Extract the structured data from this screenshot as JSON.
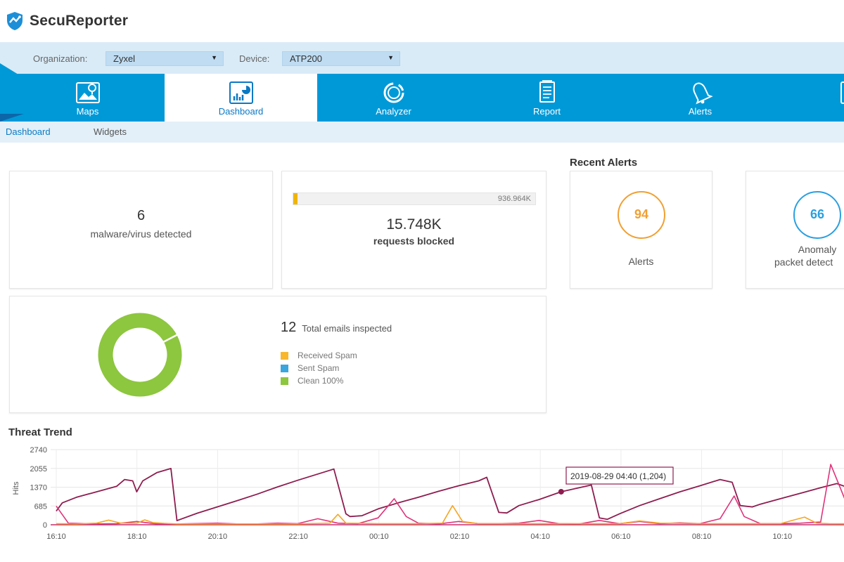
{
  "app": {
    "title": "SecuReporter"
  },
  "filters": {
    "organization_label": "Organization:",
    "organization_value": "Zyxel",
    "device_label": "Device:",
    "device_value": "ATP200"
  },
  "nav": {
    "items": [
      {
        "label": "Maps",
        "icon": "map-icon"
      },
      {
        "label": "Dashboard",
        "icon": "dashboard-icon"
      },
      {
        "label": "Analyzer",
        "icon": "analyzer-icon"
      },
      {
        "label": "Report",
        "icon": "report-icon"
      },
      {
        "label": "Alerts",
        "icon": "bell-icon"
      }
    ],
    "active": "Dashboard"
  },
  "subnav": {
    "items": [
      "Dashboard",
      "Widgets"
    ],
    "active": "Dashboard"
  },
  "malware": {
    "count": "6",
    "label": "malware/virus detected"
  },
  "requests": {
    "value": "15.748K",
    "label": "requests blocked",
    "max_label": "936.964K",
    "fill_fraction": 0.0168,
    "fill_color": "#f0b500"
  },
  "recent_alerts": {
    "title": "Recent Alerts",
    "items": [
      {
        "value": "94",
        "label": "Alerts",
        "color": "#f0a033"
      },
      {
        "value": "66",
        "label_line1": "Anomaly",
        "label_line2": "packet detect",
        "color": "#2a9fe0"
      }
    ]
  },
  "email": {
    "count": "12",
    "label": "Total emails inspected",
    "legend": [
      {
        "label": "Received Spam",
        "color": "#f8b72c"
      },
      {
        "label": "Sent Spam",
        "color": "#3aa6dd"
      },
      {
        "label": "Clean 100%",
        "color": "#8dc63f"
      }
    ],
    "clean_percent": 100
  },
  "threat_trend": {
    "title": "Threat Trend",
    "tooltip": "2019-08-29 04:40 (1,204)",
    "chart_data": {
      "type": "line",
      "title": "Threat Trend",
      "ylabel": "Hits",
      "ylim": [
        0,
        2740
      ],
      "y_ticks": [
        "2740",
        "2055",
        "1370",
        "685",
        "0"
      ],
      "x_ticks": [
        "16:10",
        "18:10",
        "20:10",
        "22:10",
        "00:10",
        "02:10",
        "04:10",
        "06:10",
        "08:10",
        "10:10"
      ],
      "x_range_hours": [
        16.0,
        27.75
      ],
      "series": [
        {
          "color": "#8e1d4f",
          "points": [
            [
              16.0,
              500
            ],
            [
              16.15,
              800
            ],
            [
              16.5,
              1000
            ],
            [
              17.0,
              1200
            ],
            [
              17.5,
              1400
            ],
            [
              17.7,
              1650
            ],
            [
              17.9,
              1600
            ],
            [
              18.0,
              1200
            ],
            [
              18.15,
              1600
            ],
            [
              18.5,
              1900
            ],
            [
              18.85,
              2050
            ],
            [
              19.0,
              150
            ],
            [
              19.5,
              420
            ],
            [
              20.0,
              650
            ],
            [
              20.5,
              880
            ],
            [
              21.0,
              1120
            ],
            [
              21.5,
              1380
            ],
            [
              22.0,
              1620
            ],
            [
              22.5,
              1850
            ],
            [
              22.9,
              2030
            ],
            [
              23.2,
              400
            ],
            [
              23.3,
              300
            ],
            [
              23.6,
              330
            ],
            [
              24.0,
              580
            ],
            [
              24.5,
              800
            ],
            [
              25.0,
              1000
            ],
            [
              25.5,
              1220
            ],
            [
              26.0,
              1420
            ],
            [
              26.5,
              1600
            ],
            [
              26.7,
              1730
            ],
            [
              27.0,
              450
            ],
            [
              27.2,
              430
            ],
            [
              27.5,
              700
            ],
            [
              28.0,
              920
            ],
            [
              28.55,
              1204
            ],
            [
              29.0,
              1350
            ],
            [
              29.3,
              1450
            ],
            [
              29.5,
              250
            ],
            [
              29.7,
              200
            ],
            [
              30.0,
              400
            ],
            [
              30.5,
              700
            ],
            [
              31.0,
              950
            ],
            [
              31.5,
              1200
            ],
            [
              32.0,
              1420
            ],
            [
              32.5,
              1650
            ],
            [
              32.8,
              1550
            ],
            [
              33.0,
              700
            ],
            [
              33.3,
              650
            ],
            [
              33.5,
              750
            ],
            [
              34.0,
              950
            ],
            [
              34.5,
              1150
            ],
            [
              35.0,
              1350
            ],
            [
              35.4,
              1500
            ],
            [
              35.6,
              1400
            ],
            [
              35.8,
              200
            ],
            [
              36.0,
              100
            ]
          ]
        },
        {
          "color": "#e0327a",
          "points": [
            [
              16.0,
              680
            ],
            [
              16.3,
              60
            ],
            [
              17.0,
              30
            ],
            [
              17.5,
              40
            ],
            [
              18.0,
              120
            ],
            [
              18.5,
              30
            ],
            [
              19.0,
              30
            ],
            [
              20.0,
              60
            ],
            [
              20.5,
              30
            ],
            [
              21.0,
              30
            ],
            [
              21.5,
              60
            ],
            [
              22.0,
              40
            ],
            [
              22.5,
              220
            ],
            [
              23.0,
              60
            ],
            [
              23.5,
              40
            ],
            [
              24.0,
              250
            ],
            [
              24.4,
              950
            ],
            [
              24.7,
              300
            ],
            [
              25.0,
              60
            ],
            [
              25.5,
              30
            ],
            [
              26.0,
              120
            ],
            [
              26.5,
              40
            ],
            [
              27.0,
              40
            ],
            [
              27.5,
              60
            ],
            [
              28.0,
              160
            ],
            [
              28.5,
              40
            ],
            [
              29.0,
              30
            ],
            [
              29.5,
              160
            ],
            [
              30.0,
              40
            ],
            [
              30.5,
              120
            ],
            [
              31.0,
              40
            ],
            [
              31.5,
              70
            ],
            [
              32.0,
              40
            ],
            [
              32.5,
              220
            ],
            [
              32.85,
              1050
            ],
            [
              33.1,
              300
            ],
            [
              33.5,
              40
            ],
            [
              34.0,
              40
            ],
            [
              34.5,
              60
            ],
            [
              35.0,
              100
            ],
            [
              35.25,
              2200
            ],
            [
              35.5,
              1300
            ],
            [
              35.8,
              200
            ],
            [
              36.0,
              60
            ]
          ]
        },
        {
          "color": "#f5a623",
          "points": [
            [
              16.0,
              40
            ],
            [
              16.5,
              30
            ],
            [
              17.0,
              60
            ],
            [
              17.3,
              170
            ],
            [
              17.6,
              60
            ],
            [
              18.0,
              60
            ],
            [
              18.2,
              180
            ],
            [
              18.4,
              80
            ],
            [
              18.7,
              50
            ],
            [
              19.0,
              30
            ],
            [
              20.0,
              30
            ],
            [
              21.0,
              30
            ],
            [
              22.0,
              30
            ],
            [
              22.8,
              60
            ],
            [
              23.0,
              380
            ],
            [
              23.2,
              60
            ],
            [
              24.0,
              40
            ],
            [
              25.0,
              40
            ],
            [
              25.6,
              60
            ],
            [
              25.85,
              700
            ],
            [
              26.1,
              120
            ],
            [
              26.5,
              40
            ],
            [
              27.0,
              40
            ],
            [
              28.0,
              40
            ],
            [
              29.0,
              40
            ],
            [
              30.0,
              40
            ],
            [
              30.5,
              140
            ],
            [
              31.0,
              60
            ],
            [
              32.0,
              40
            ],
            [
              33.0,
              40
            ],
            [
              34.0,
              40
            ],
            [
              34.6,
              280
            ],
            [
              34.9,
              60
            ],
            [
              35.2,
              40
            ],
            [
              36.0,
              30
            ]
          ]
        }
      ]
    }
  }
}
